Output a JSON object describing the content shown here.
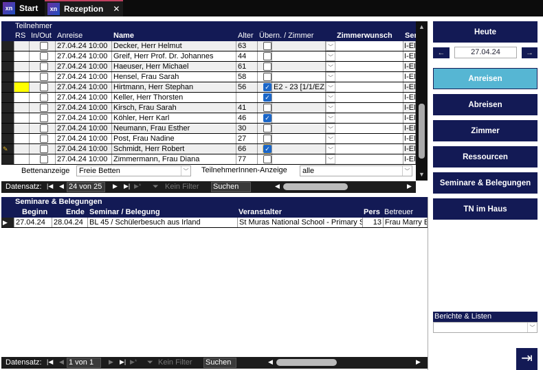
{
  "tabs": [
    {
      "label": "Start",
      "logo": "xn"
    },
    {
      "label": "Rezeption",
      "logo": "xn",
      "close": "✕"
    }
  ],
  "grid": {
    "group_label": "Teilnehmer",
    "columns": [
      "RS",
      "In/Out",
      "Anreise",
      "Name",
      "Alter",
      "Übern. / Zimmer",
      "Zimmerwunsch",
      "Ser"
    ],
    "rows": [
      {
        "anreise": "27.04.24 10:00",
        "name": "Decker, Herr Helmut",
        "alter": "63",
        "uebern": false,
        "zimmer": "",
        "ser": "I-EN"
      },
      {
        "anreise": "27.04.24 10:00",
        "name": "Greif, Herr Prof. Dr. Johannes",
        "alter": "44",
        "uebern": false,
        "zimmer": "",
        "ser": "I-EN"
      },
      {
        "anreise": "27.04.24 10:00",
        "name": "Haeuser, Herr Michael",
        "alter": "61",
        "uebern": false,
        "zimmer": "",
        "ser": "I-EN"
      },
      {
        "anreise": "27.04.24 10:00",
        "name": "Hensel, Frau Sarah",
        "alter": "58",
        "uebern": false,
        "zimmer": "",
        "ser": "I-EN"
      },
      {
        "anreise": "27.04.24 10:00",
        "name": "Hirtmann, Herr Stephan",
        "alter": "56",
        "uebern": true,
        "zimmer": "E2 - 23 [1/1/EZ",
        "ser": "I-EN",
        "rs": "#ffff00"
      },
      {
        "anreise": "27.04.24 10:00",
        "name": "Keller, Herr Thorsten",
        "alter": "",
        "uebern": true,
        "zimmer": "",
        "ser": "I-EN"
      },
      {
        "anreise": "27.04.24 10:00",
        "name": "Kirsch, Frau Sarah",
        "alter": "41",
        "uebern": false,
        "zimmer": "",
        "ser": "I-EN"
      },
      {
        "anreise": "27.04.24 10:00",
        "name": "Köhler, Herr Karl",
        "alter": "46",
        "uebern": true,
        "zimmer": "",
        "ser": "I-EN"
      },
      {
        "anreise": "27.04.24 10:00",
        "name": "Neumann, Frau Esther",
        "alter": "30",
        "uebern": false,
        "zimmer": "",
        "ser": "I-EN"
      },
      {
        "anreise": "27.04.24 10:00",
        "name": "Post, Frau Nadine",
        "alter": "27",
        "uebern": false,
        "zimmer": "",
        "ser": "I-EN"
      },
      {
        "anreise": "27.04.24 10:00",
        "name": "Schmidt, Herr Robert",
        "alter": "66",
        "uebern": true,
        "zimmer": "",
        "ser": "I-EN",
        "current": true
      },
      {
        "anreise": "27.04.24 10:00",
        "name": "Zimmermann, Frau Diana",
        "alter": "77",
        "uebern": false,
        "zimmer": "",
        "ser": "I-EN"
      }
    ]
  },
  "filters": {
    "betten_label": "Bettenanzeige",
    "betten_value": "Freie Betten",
    "tn_label": "TeilnehmerInnen-Anzeige",
    "tn_value": "alle"
  },
  "nav1": {
    "label": "Datensatz:",
    "record": "24 von 25",
    "filter": "Kein Filter",
    "search": "Suchen"
  },
  "seminare": {
    "title": "Seminare & Belegungen",
    "columns": [
      "Beginn",
      "Ende",
      "Seminar / Belegung",
      "Veranstalter",
      "Pers",
      "Betreuer"
    ],
    "rows": [
      {
        "beginn": "27.04.24",
        "ende": "28.04.24",
        "seminar": "BL 45 / Schülerbesuch aus Irland",
        "veranstalter": "St Muras National School - Primary Sc",
        "pers": "13",
        "betreuer": "Frau Marry B"
      }
    ]
  },
  "nav2": {
    "label": "Datensatz:",
    "record": "1 von 1",
    "filter": "Kein Filter",
    "search": "Suchen"
  },
  "side": {
    "heute": "Heute",
    "date": "27.04.24",
    "buttons": [
      "Anreisen",
      "Abreisen",
      "Zimmer",
      "Ressourcen",
      "Seminare & Belegungen",
      "TN im Haus"
    ],
    "active": "Anreisen",
    "berichte_label": "Berichte & Listen",
    "berichte_value": ""
  },
  "colors": {
    "navy": "#131a55",
    "active": "#56b6d3",
    "rs_marker": "#ffff00"
  }
}
